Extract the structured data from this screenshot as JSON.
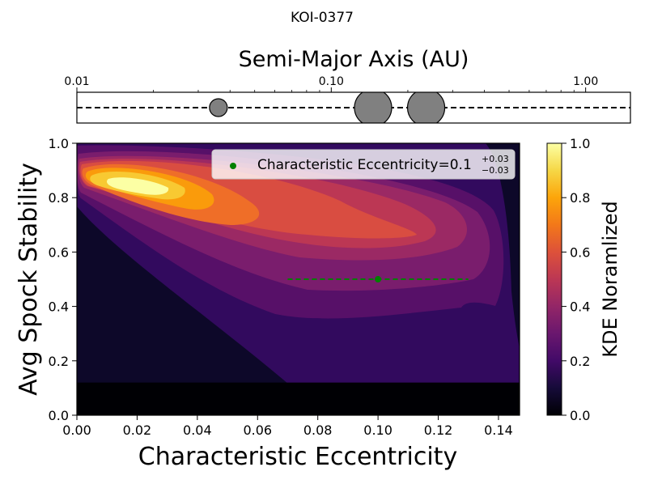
{
  "figure_title": "KOI-0377",
  "chart_data": [
    {
      "type": "scatter",
      "panel": "top",
      "title": "Semi-Major Axis (AU)",
      "xscale": "log",
      "xlim": [
        0.01,
        1.5
      ],
      "tick_values": [
        0.01,
        0.1,
        1.0
      ],
      "tick_labels": [
        "0.01",
        "0.10",
        "1.00"
      ],
      "minor_ticks": [
        0.02,
        0.03,
        0.04,
        0.05,
        0.06,
        0.07,
        0.08,
        0.09,
        0.2,
        0.3,
        0.4,
        0.5,
        0.6,
        0.7,
        0.8,
        0.9
      ],
      "line_style": "dashed",
      "planets": [
        {
          "a": 0.036,
          "size": "small"
        },
        {
          "a": 0.146,
          "size": "large"
        },
        {
          "a": 0.236,
          "size": "large"
        }
      ],
      "planet_color": "#808080"
    },
    {
      "type": "heatmap",
      "panel": "main",
      "xlabel": "Characteristic Eccentricity",
      "ylabel": "Avg Spock Stability",
      "xlim": [
        0.0,
        0.147
      ],
      "ylim": [
        0.0,
        1.0
      ],
      "x_ticks": [
        0.0,
        0.02,
        0.04,
        0.06,
        0.08,
        0.1,
        0.12,
        0.14
      ],
      "x_tick_labels": [
        "0.00",
        "0.02",
        "0.04",
        "0.06",
        "0.08",
        "0.10",
        "0.12",
        "0.14"
      ],
      "y_ticks": [
        0.0,
        0.2,
        0.4,
        0.6,
        0.8,
        1.0
      ],
      "y_tick_labels": [
        "0.0",
        "0.2",
        "0.4",
        "0.6",
        "0.8",
        "1.0"
      ],
      "colormap": "inferno",
      "contour_levels": [
        {
          "level": 0.1,
          "color": "#320a5e"
        },
        {
          "level": 0.2,
          "color": "#571068"
        },
        {
          "level": 0.3,
          "color": "#7a1d6d"
        },
        {
          "level": 0.4,
          "color": "#9b2964"
        },
        {
          "level": 0.5,
          "color": "#bc3754"
        },
        {
          "level": 0.6,
          "color": "#d94d41"
        },
        {
          "level": 0.7,
          "color": "#ef6e28"
        },
        {
          "level": 0.8,
          "color": "#fa9b0b"
        },
        {
          "level": 0.9,
          "color": "#f8c932"
        },
        {
          "level": 1.0,
          "color": "#fcffa4"
        }
      ],
      "background_color": "#0d0829",
      "floor_band": {
        "y_range": [
          0.0,
          0.12
        ],
        "color": "#000004"
      },
      "estimate": {
        "x": 0.1,
        "y": 0.5,
        "xerr": [
          0.03,
          0.03
        ],
        "color": "#008000"
      },
      "legend": {
        "position": "top-right",
        "label_prefix": "Characteristic Eccentricity=0.1",
        "sup": "+0.03",
        "sub": "−0.03"
      },
      "colorbar": {
        "label": "KDE Noramlized",
        "range": [
          0.0,
          1.0
        ],
        "tick_values": [
          0.0,
          0.2,
          0.4,
          0.6,
          0.8,
          1.0
        ],
        "tick_labels": [
          "0.0",
          "0.2",
          "0.4",
          "0.6",
          "0.8",
          "1.0"
        ]
      }
    }
  ]
}
